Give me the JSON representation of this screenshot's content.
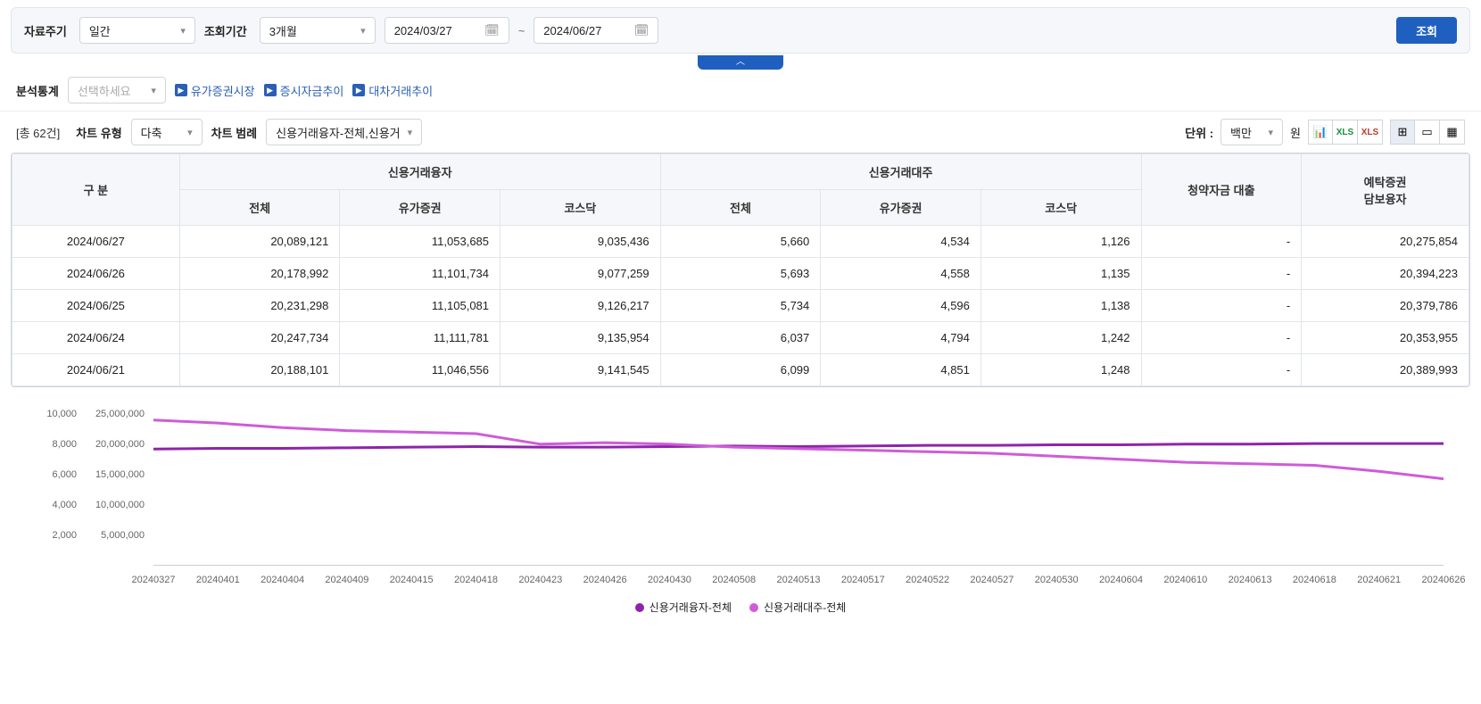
{
  "filter": {
    "period_label": "자료주기",
    "period_value": "일간",
    "range_label": "조회기간",
    "range_value": "3개월",
    "date_from": "2024/03/27",
    "date_to": "2024/06/27",
    "tilde": "~",
    "search_btn": "조회"
  },
  "analysis": {
    "label": "분석통계",
    "placeholder": "선택하세요",
    "links": [
      "유가증권시장",
      "증시자금추이",
      "대차거래추이"
    ]
  },
  "controls": {
    "total": "[총 62건]",
    "chart_type_label": "차트 유형",
    "chart_type_value": "다축",
    "legend_label": "차트 범례",
    "legend_value": "신용거래융자-전체,신용거",
    "unit_label": "단위 :",
    "unit_value": "백만",
    "unit_suffix": "원"
  },
  "table": {
    "columns": {
      "col0": "구 분",
      "group1": "신용거래융자",
      "group2": "신용거래대주",
      "col1": "전체",
      "col2": "유가증권",
      "col3": "코스닥",
      "col4": "전체",
      "col5": "유가증권",
      "col6": "코스닥",
      "col7": "청약자금 대출",
      "col8_line1": "예탁증권",
      "col8_line2": "담보융자"
    },
    "rows": [
      {
        "date": "2024/06/27",
        "a": "20,089,121",
        "b": "11,053,685",
        "c": "9,035,436",
        "d": "5,660",
        "e": "4,534",
        "f": "1,126",
        "g": "-",
        "h": "20,275,854"
      },
      {
        "date": "2024/06/26",
        "a": "20,178,992",
        "b": "11,101,734",
        "c": "9,077,259",
        "d": "5,693",
        "e": "4,558",
        "f": "1,135",
        "g": "-",
        "h": "20,394,223"
      },
      {
        "date": "2024/06/25",
        "a": "20,231,298",
        "b": "11,105,081",
        "c": "9,126,217",
        "d": "5,734",
        "e": "4,596",
        "f": "1,138",
        "g": "-",
        "h": "20,379,786"
      },
      {
        "date": "2024/06/24",
        "a": "20,247,734",
        "b": "11,111,781",
        "c": "9,135,954",
        "d": "6,037",
        "e": "4,794",
        "f": "1,242",
        "g": "-",
        "h": "20,353,955"
      },
      {
        "date": "2024/06/21",
        "a": "20,188,101",
        "b": "11,046,556",
        "c": "9,141,545",
        "d": "6,099",
        "e": "4,851",
        "f": "1,248",
        "g": "-",
        "h": "20,389,993"
      }
    ]
  },
  "chart": {
    "type": "line",
    "background_color": "#ffffff",
    "grid_color": "#e8e8e8",
    "line_width": 3,
    "y_left": {
      "ticks": [
        "10,000",
        "8,000",
        "6,000",
        "4,000",
        "2,000"
      ],
      "values": [
        10000,
        8000,
        6000,
        4000,
        2000
      ],
      "ylim": [
        0,
        10000
      ]
    },
    "y_right": {
      "ticks": [
        "25,000,000",
        "20,000,000",
        "15,000,000",
        "10,000,000",
        "5,000,000"
      ],
      "values": [
        25000000,
        20000000,
        15000000,
        10000000,
        5000000
      ],
      "ylim": [
        0,
        25000000
      ]
    },
    "x_ticks": [
      "20240327",
      "20240401",
      "20240404",
      "20240409",
      "20240415",
      "20240418",
      "20240423",
      "20240426",
      "20240430",
      "20240508",
      "20240513",
      "20240517",
      "20240522",
      "20240527",
      "20240530",
      "20240604",
      "20240610",
      "20240613",
      "20240618",
      "20240621",
      "20240626"
    ],
    "series": [
      {
        "name": "신용거래융자-전체",
        "color": "#8e24aa",
        "axis": "right",
        "data": [
          19200000,
          19300000,
          19300000,
          19400000,
          19500000,
          19600000,
          19500000,
          19500000,
          19600000,
          19700000,
          19600000,
          19700000,
          19800000,
          19800000,
          19900000,
          19900000,
          20000000,
          20000000,
          20100000,
          20100000,
          20100000
        ]
      },
      {
        "name": "신용거래대주-전체",
        "color": "#ce5cd8",
        "axis": "left",
        "data": [
          9600,
          9400,
          9100,
          8900,
          8800,
          8700,
          8000,
          8100,
          8000,
          7800,
          7700,
          7600,
          7500,
          7400,
          7200,
          7000,
          6800,
          6700,
          6600,
          6200,
          5700
        ]
      }
    ],
    "legend_font_size": 12,
    "axis_font_size": 11
  }
}
